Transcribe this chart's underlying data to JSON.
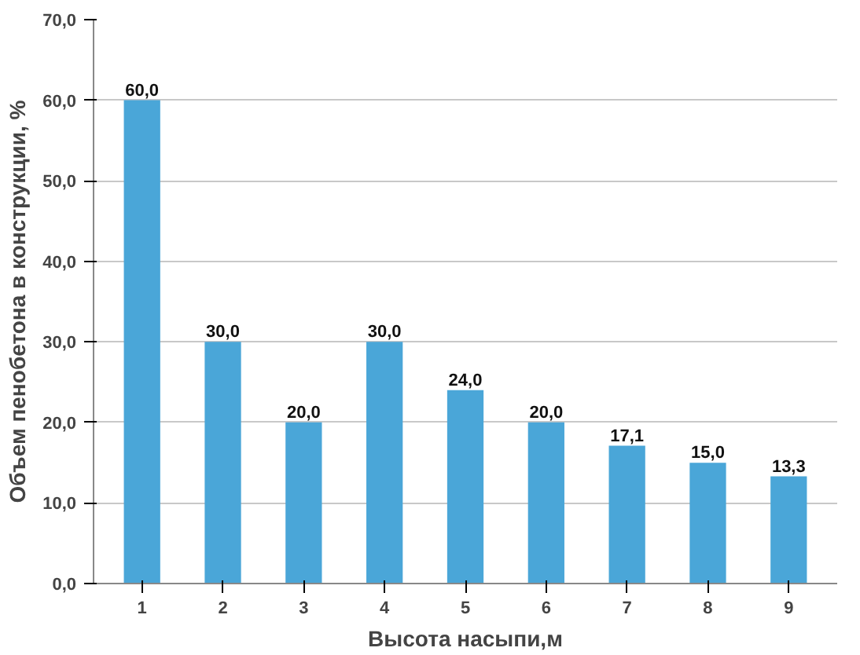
{
  "chart_data": {
    "type": "bar",
    "xlabel": "Высота насыпи,м",
    "ylabel": "Объем пенобетона в конструкции, %",
    "categories": [
      "1",
      "2",
      "3",
      "4",
      "5",
      "6",
      "7",
      "8",
      "9"
    ],
    "values": [
      60.0,
      30.0,
      20.0,
      30.0,
      24.0,
      20.0,
      17.1,
      15.0,
      13.3
    ],
    "value_labels": [
      "60,0",
      "30,0",
      "20,0",
      "30,0",
      "24,0",
      "20,0",
      "17,1",
      "15,0",
      "13,3"
    ],
    "color": "#4aa6d8",
    "ylim": [
      0,
      70
    ],
    "yticks": [
      {
        "value": 0,
        "label": "0,0"
      },
      {
        "value": 10,
        "label": "10,0"
      },
      {
        "value": 20,
        "label": "20,0"
      },
      {
        "value": 30,
        "label": "30,0"
      },
      {
        "value": 40,
        "label": "40,0"
      },
      {
        "value": 50,
        "label": "50,0"
      },
      {
        "value": 60,
        "label": "60,0"
      },
      {
        "value": 70,
        "label": "70,0"
      }
    ],
    "grid": "y"
  }
}
